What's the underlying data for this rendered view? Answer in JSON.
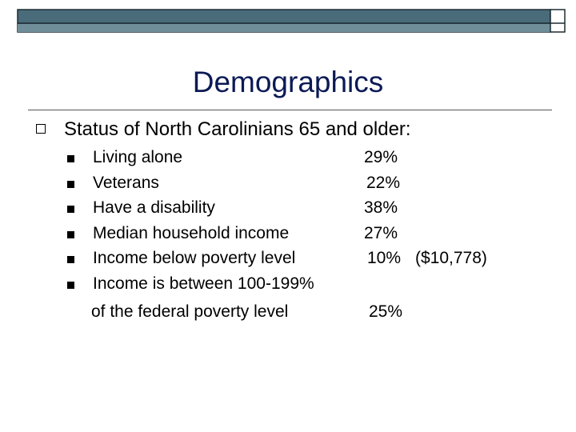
{
  "title": "Demographics",
  "heading": "Status of North Carolinians 65 and older:",
  "items": [
    {
      "label": "Living alone",
      "value": "29%"
    },
    {
      "label": "Veterans",
      "value": "22%"
    },
    {
      "label": "Have a disability",
      "value": "38%"
    },
    {
      "label": "Median household income",
      "value": "27%"
    },
    {
      "label": "Income below poverty level",
      "value": "10%",
      "note": "($10,778)"
    },
    {
      "label": "Income is between 100-199%"
    }
  ],
  "continuation": {
    "label": "of the federal poverty level",
    "value": "25%"
  }
}
